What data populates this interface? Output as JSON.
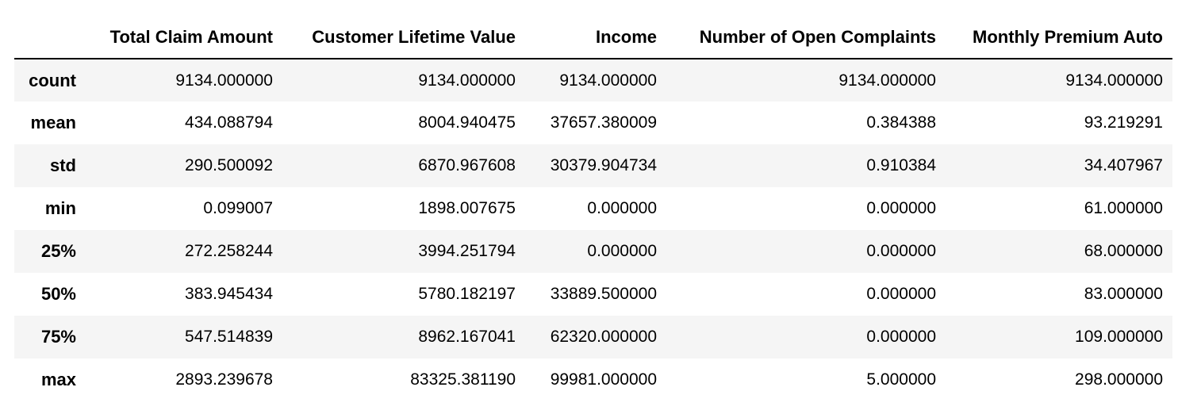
{
  "table": {
    "index_header": "",
    "columns": [
      "Total Claim Amount",
      "Customer Lifetime Value",
      "Income",
      "Number of Open Complaints",
      "Monthly Premium Auto"
    ],
    "rows": [
      {
        "label": "count",
        "values": [
          "9134.000000",
          "9134.000000",
          "9134.000000",
          "9134.000000",
          "9134.000000"
        ]
      },
      {
        "label": "mean",
        "values": [
          "434.088794",
          "8004.940475",
          "37657.380009",
          "0.384388",
          "93.219291"
        ]
      },
      {
        "label": "std",
        "values": [
          "290.500092",
          "6870.967608",
          "30379.904734",
          "0.910384",
          "34.407967"
        ]
      },
      {
        "label": "min",
        "values": [
          "0.099007",
          "1898.007675",
          "0.000000",
          "0.000000",
          "61.000000"
        ]
      },
      {
        "label": "25%",
        "values": [
          "272.258244",
          "3994.251794",
          "0.000000",
          "0.000000",
          "68.000000"
        ]
      },
      {
        "label": "50%",
        "values": [
          "383.945434",
          "5780.182197",
          "33889.500000",
          "0.000000",
          "83.000000"
        ]
      },
      {
        "label": "75%",
        "values": [
          "547.514839",
          "8962.167041",
          "62320.000000",
          "0.000000",
          "109.000000"
        ]
      },
      {
        "label": "max",
        "values": [
          "2893.239678",
          "83325.381190",
          "99981.000000",
          "5.000000",
          "298.000000"
        ]
      }
    ]
  }
}
